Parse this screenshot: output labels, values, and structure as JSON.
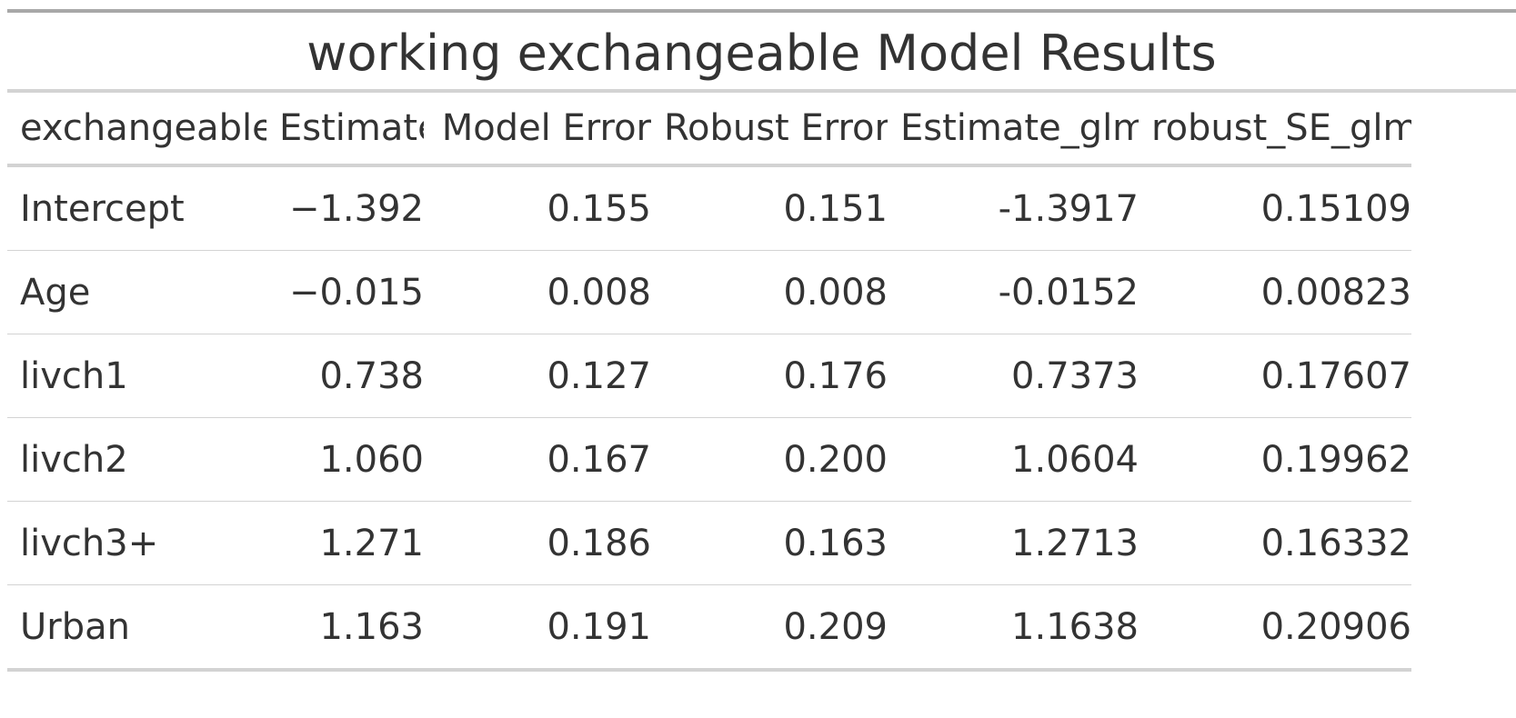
{
  "table": {
    "title": "working exchangeable Model Results",
    "columns": [
      "exchangeable",
      "Estimate",
      "Model Error",
      "Robust Error",
      "Estimate_glm",
      "robust_SE_glm"
    ],
    "rows": [
      [
        "Intercept",
        "−1.392",
        "0.155",
        "0.151",
        "-1.3917",
        "0.15109"
      ],
      [
        "Age",
        "−0.015",
        "0.008",
        "0.008",
        "-0.0152",
        "0.00823"
      ],
      [
        "livch1",
        "0.738",
        "0.127",
        "0.176",
        "0.7373",
        "0.17607"
      ],
      [
        "livch2",
        "1.060",
        "0.167",
        "0.200",
        "1.0604",
        "0.19962"
      ],
      [
        "livch3+",
        "1.271",
        "0.186",
        "0.163",
        "1.2713",
        "0.16332"
      ],
      [
        "Urban",
        "1.163",
        "0.191",
        "0.209",
        "1.1638",
        "0.20906"
      ]
    ]
  }
}
